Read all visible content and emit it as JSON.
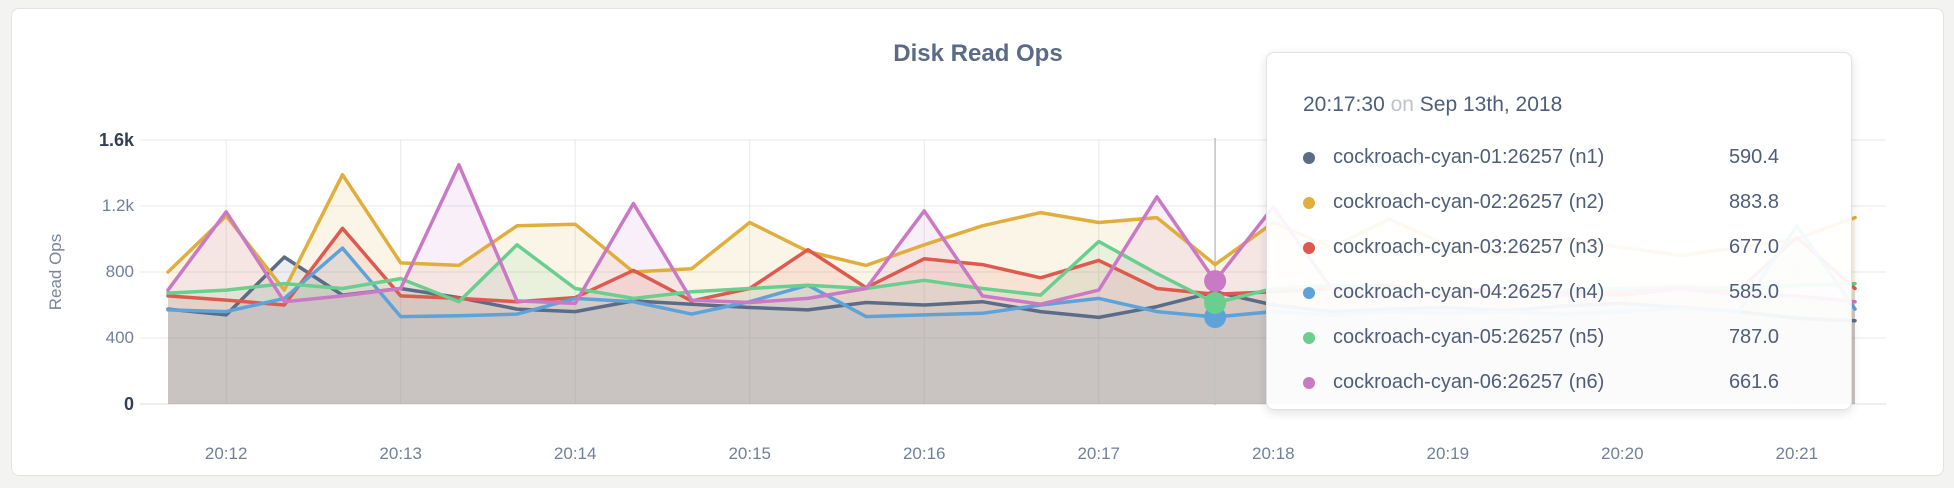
{
  "card": {
    "title": "Disk Read Ops"
  },
  "chart_data": {
    "type": "area",
    "title": "Disk Read Ops",
    "xlabel": "",
    "ylabel": "Read Ops",
    "ylim": [
      0,
      1600
    ],
    "grid": true,
    "x_start_time": "20:11:40",
    "x_step_seconds": 20,
    "x_ticks": [
      {
        "label": "20:12",
        "t": 20
      },
      {
        "label": "20:13",
        "t": 80
      },
      {
        "label": "20:14",
        "t": 140
      },
      {
        "label": "20:15",
        "t": 200
      },
      {
        "label": "20:16",
        "t": 260
      },
      {
        "label": "20:17",
        "t": 320
      },
      {
        "label": "20:18",
        "t": 380
      },
      {
        "label": "20:19",
        "t": 440
      },
      {
        "label": "20:20",
        "t": 500
      },
      {
        "label": "20:21",
        "t": 560
      }
    ],
    "y_ticks": [
      {
        "label": "0",
        "value": 0
      },
      {
        "label": "400",
        "value": 400
      },
      {
        "label": "800",
        "value": 800
      },
      {
        "label": "1.2k",
        "value": 1200
      },
      {
        "label": "1.6k",
        "value": 1600
      }
    ],
    "series": [
      {
        "name": "cockroach-cyan-01:26257 (n1)",
        "short": "n1",
        "color": "#5b6c87",
        "values": [
          575,
          540,
          890,
          660,
          700,
          645,
          575,
          560,
          625,
          605,
          585,
          570,
          615,
          600,
          620,
          560,
          525,
          590,
          680,
          600,
          560,
          575,
          585,
          565,
          595,
          610,
          585,
          560,
          520,
          505
        ]
      },
      {
        "name": "cockroach-cyan-02:26257 (n2)",
        "short": "n2",
        "color": "#e1ae3e",
        "values": [
          800,
          1140,
          690,
          1390,
          855,
          840,
          1080,
          1090,
          800,
          820,
          1100,
          925,
          840,
          965,
          1080,
          1160,
          1100,
          1130,
          845,
          1100,
          950,
          1120,
          960,
          900,
          1000,
          950,
          900,
          950,
          1000,
          1130
        ]
      },
      {
        "name": "cockroach-cyan-03:26257 (n3)",
        "short": "n3",
        "color": "#de5a4e",
        "values": [
          655,
          630,
          600,
          1065,
          655,
          640,
          620,
          645,
          810,
          625,
          700,
          935,
          705,
          880,
          845,
          765,
          870,
          700,
          665,
          680,
          700,
          720,
          650,
          700,
          680,
          660,
          700,
          690,
          1010,
          700
        ]
      },
      {
        "name": "cockroach-cyan-04:26257 (n4)",
        "short": "n4",
        "color": "#5da3d9",
        "values": [
          570,
          560,
          640,
          945,
          530,
          535,
          545,
          640,
          620,
          545,
          620,
          720,
          530,
          540,
          550,
          600,
          640,
          560,
          527,
          560,
          540,
          560,
          550,
          560,
          545,
          560,
          580,
          560,
          1080,
          575
        ]
      },
      {
        "name": "cockroach-cyan-05:26257 (n5)",
        "short": "n5",
        "color": "#6ace8e",
        "values": [
          672,
          690,
          730,
          700,
          760,
          620,
          965,
          700,
          640,
          680,
          700,
          720,
          700,
          750,
          700,
          660,
          985,
          790,
          612,
          700,
          720,
          700,
          680,
          700,
          690,
          700,
          710,
          700,
          720,
          730
        ]
      },
      {
        "name": "cockroach-cyan-06:26257 (n6)",
        "short": "n6",
        "color": "#ca79c4",
        "values": [
          690,
          1165,
          620,
          655,
          700,
          1450,
          625,
          610,
          1215,
          630,
          615,
          640,
          700,
          1170,
          655,
          605,
          690,
          1255,
          745,
          1195,
          700,
          650,
          680,
          700,
          660,
          680,
          700,
          660,
          655,
          620
        ]
      }
    ],
    "hover": {
      "time_index": 18,
      "line_color": "#c0c3c4",
      "dot_series": [
        "n4",
        "n5",
        "n6"
      ],
      "dot_radius": 11
    }
  },
  "tooltip": {
    "time": "20:17:30",
    "conjunction": "on",
    "date": "Sep 13th, 2018",
    "rows": [
      {
        "label": "cockroach-cyan-01:26257 (n1)",
        "value": "590.4",
        "color": "#5b6c87"
      },
      {
        "label": "cockroach-cyan-02:26257 (n2)",
        "value": "883.8",
        "color": "#e1ae3e"
      },
      {
        "label": "cockroach-cyan-03:26257 (n3)",
        "value": "677.0",
        "color": "#de5a4e"
      },
      {
        "label": "cockroach-cyan-04:26257 (n4)",
        "value": "585.0",
        "color": "#5da3d9"
      },
      {
        "label": "cockroach-cyan-05:26257 (n5)",
        "value": "787.0",
        "color": "#6ace8e"
      },
      {
        "label": "cockroach-cyan-06:26257 (n6)",
        "value": "661.6",
        "color": "#ca79c4"
      }
    ]
  }
}
